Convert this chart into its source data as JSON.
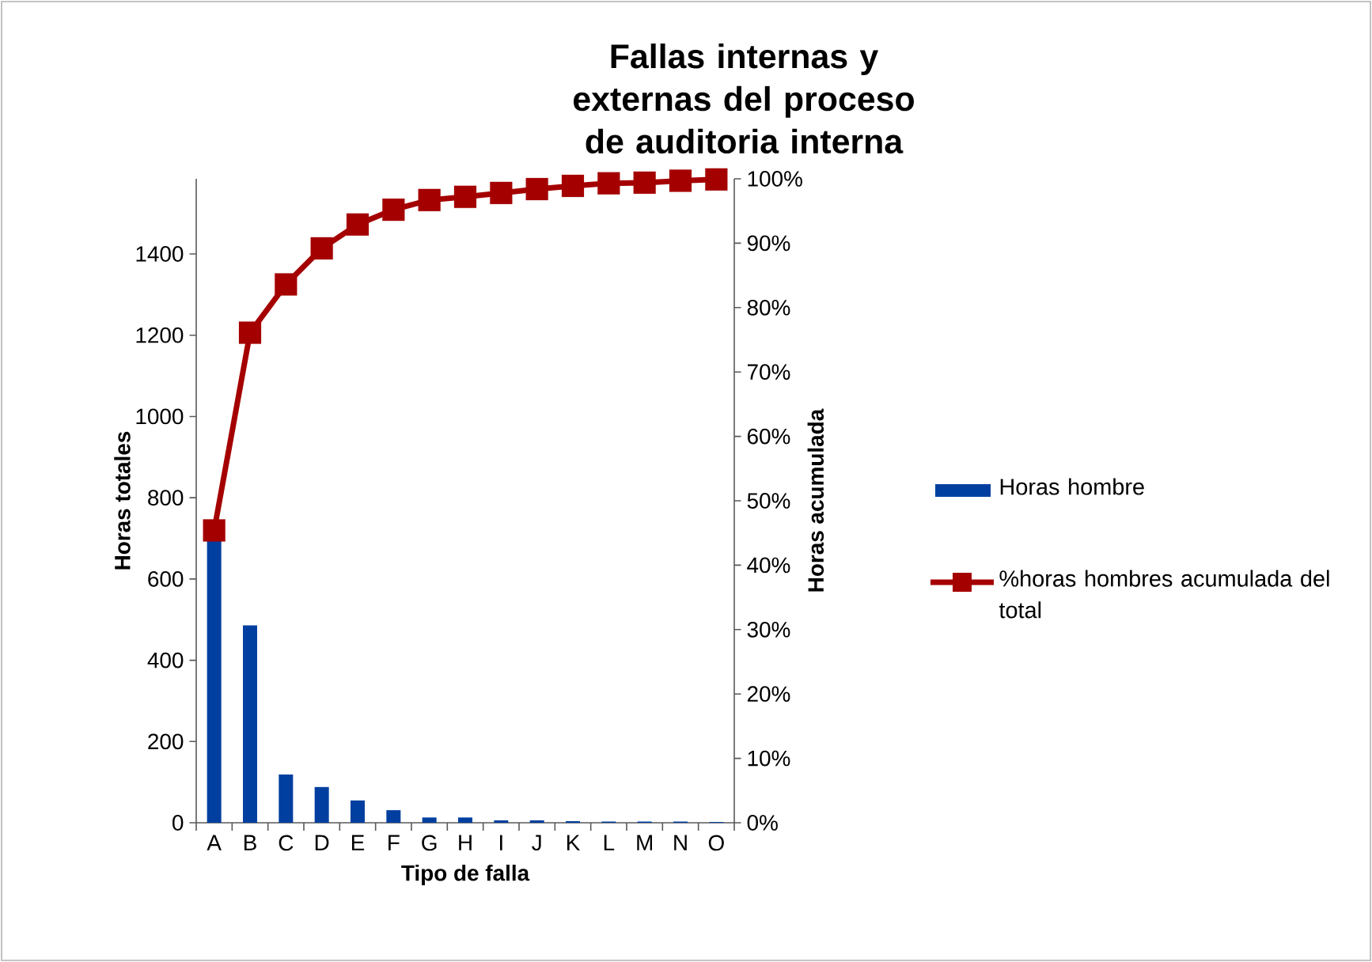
{
  "chart_data": {
    "type": "bar",
    "title": "Fallas internas y externas del proceso de auditoria interna",
    "xlabel": "Tipo de falla",
    "ylabel": "Horas totales",
    "y2label": "Horas acumulada",
    "categories": [
      "A",
      "B",
      "C",
      "D",
      "E",
      "F",
      "G",
      "H",
      "I",
      "J",
      "K",
      "L",
      "M",
      "N",
      "O"
    ],
    "ylim": [
      0,
      1585
    ],
    "yticks": [
      0,
      200,
      400,
      600,
      800,
      1000,
      1200,
      1400
    ],
    "y2lim": [
      0,
      100
    ],
    "y2ticks": [
      {
        "value": 0,
        "label": "0%"
      },
      {
        "value": 10,
        "label": "10%"
      },
      {
        "value": 20,
        "label": "20%"
      },
      {
        "value": 30,
        "label": "30%"
      },
      {
        "value": 40,
        "label": "40%"
      },
      {
        "value": 50,
        "label": "50%"
      },
      {
        "value": 60,
        "label": "60%"
      },
      {
        "value": 70,
        "label": "70%"
      },
      {
        "value": 80,
        "label": "80%"
      },
      {
        "value": 90,
        "label": "90%"
      },
      {
        "value": 100,
        "label": "100%"
      }
    ],
    "legend": "right",
    "series": [
      {
        "name": "Horas hombre",
        "color": "#003f9f",
        "values": [
          701,
          486,
          119,
          88,
          55,
          31,
          13,
          13,
          6,
          6,
          4,
          3,
          3,
          3,
          2
        ]
      },
      {
        "name": "%horas hombres acumulada del total",
        "type": "line",
        "axis": "y2",
        "marker": "square",
        "color": "#a50000",
        "values": [
          45.4,
          76.1,
          83.6,
          89.2,
          92.9,
          95.2,
          96.7,
          97.2,
          97.8,
          98.4,
          98.9,
          99.3,
          99.4,
          99.7,
          99.9
        ]
      }
    ]
  }
}
